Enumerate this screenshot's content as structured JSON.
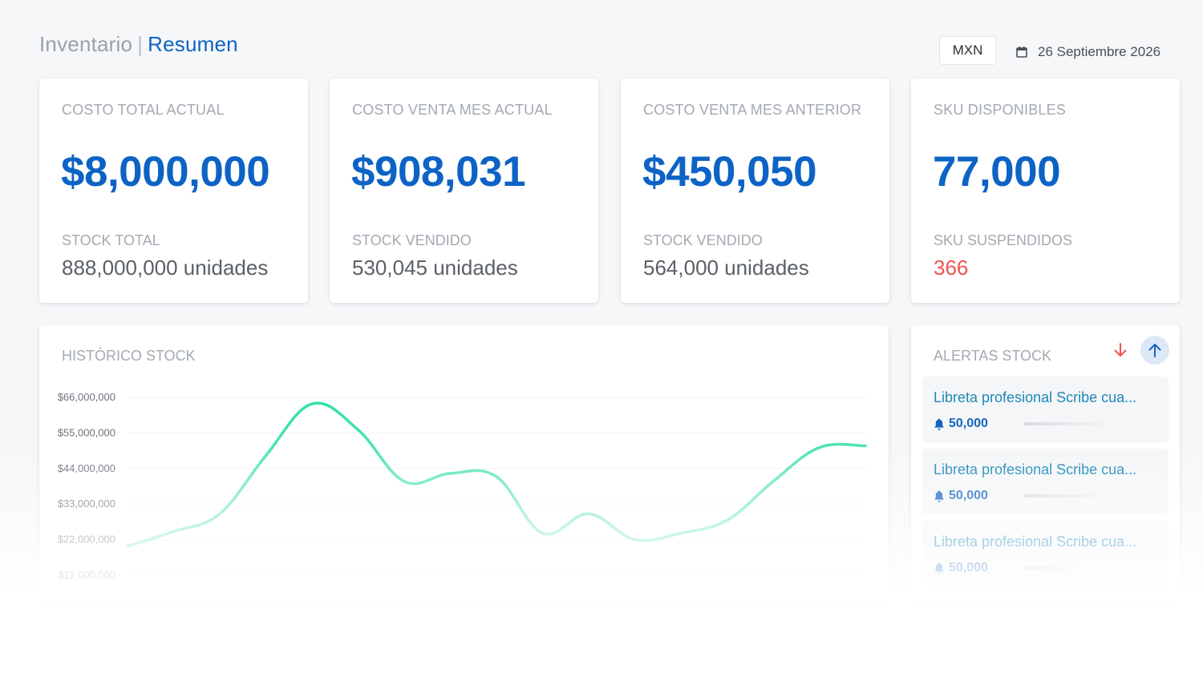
{
  "header": {
    "section": "Inventario",
    "separator": "|",
    "page": "Resumen",
    "currency": "MXN",
    "date": "26 Septiembre 2026"
  },
  "cards": [
    {
      "label": "COSTO TOTAL ACTUAL",
      "value": "$8,000,000",
      "sublabel": "STOCK TOTAL",
      "subvalue": "888,000,000 unidades"
    },
    {
      "label": "COSTO VENTA MES ACTUAL",
      "value": "$908,031",
      "sublabel": "STOCK VENDIDO",
      "subvalue": "530,045 unidades"
    },
    {
      "label": "COSTO VENTA MES ANTERIOR",
      "value": "$450,050",
      "sublabel": "STOCK VENDIDO",
      "subvalue": "564,000 unidades"
    },
    {
      "label": "SKU DISPONIBLES",
      "value": "77,000",
      "sublabel": "SKU SUSPENDIDOS",
      "subvalue": "366"
    }
  ],
  "history": {
    "title": "HISTÓRICO STOCK"
  },
  "chart_data": {
    "type": "line",
    "title": "HISTÓRICO STOCK",
    "xlabel": "",
    "ylabel": "",
    "grid": true,
    "yticks": [
      "$66,000,000",
      "$55,000,000",
      "$44,000,000",
      "$33,000,000",
      "$22,000,000",
      "$11,000,000"
    ],
    "ytick_values": [
      66000000,
      55000000,
      44000000,
      33000000,
      22000000,
      11000000
    ],
    "ylim": [
      11000000,
      66000000
    ],
    "x": [
      0,
      1,
      2,
      3,
      4,
      5,
      6,
      7,
      8,
      9,
      10,
      11,
      12,
      13,
      14,
      15,
      16
    ],
    "series": [
      {
        "values": [
          20000000,
          24500000,
          30000000,
          48000000,
          64000000,
          56000000,
          40000000,
          42500000,
          41500000,
          24000000,
          30000000,
          22000000,
          24000000,
          28000000,
          40000000,
          50500000,
          51000000
        ]
      }
    ],
    "colors": {
      "line_start": "#a9f0d8",
      "line_end": "#2ee0a0"
    }
  },
  "alerts": {
    "title": "ALERTAS STOCK",
    "sort_down_icon": "arrow-down-icon",
    "sort_up_icon": "arrow-up-icon",
    "items": [
      {
        "name": "Libreta profesional Scribe cua...",
        "qty": "50,000",
        "level": 0.35
      },
      {
        "name": "Libreta profesional Scribe cua...",
        "qty": "50,000",
        "level": 0.35
      },
      {
        "name": "Libreta profesional Scribe cua...",
        "qty": "50,000",
        "level": 0.35
      }
    ]
  },
  "colors": {
    "accent": "#0d63c5",
    "danger": "#ef5350",
    "muted": "#a3a9b2",
    "alert_text": "#1e88b8"
  }
}
